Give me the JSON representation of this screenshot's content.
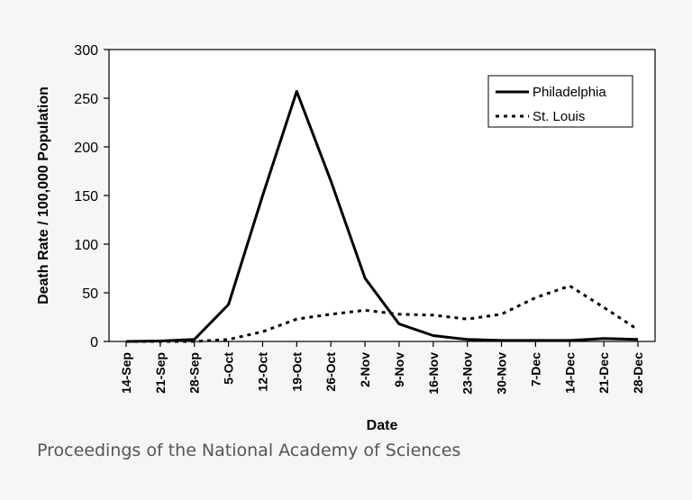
{
  "caption": "Proceedings of the National Academy of Sciences",
  "chart_data": {
    "type": "line",
    "title": "",
    "xlabel": "Date",
    "ylabel": "Death Rate / 100,000 Population",
    "ylim": [
      0,
      300
    ],
    "yticks": [
      0,
      50,
      100,
      150,
      200,
      250,
      300
    ],
    "grid": false,
    "legend_position": "top-right",
    "categories": [
      "14-Sep",
      "21-Sep",
      "28-Sep",
      "5-Oct",
      "12-Oct",
      "19-Oct",
      "26-Oct",
      "2-Nov",
      "9-Nov",
      "16-Nov",
      "23-Nov",
      "30-Nov",
      "7-Dec",
      "14-Dec",
      "21-Dec",
      "28-Dec"
    ],
    "series": [
      {
        "name": "Philadelphia",
        "style": "solid",
        "color": "#000000",
        "values": [
          0,
          0.5,
          2,
          38,
          150,
          257,
          165,
          65,
          18,
          6,
          2,
          1,
          1,
          1,
          3,
          2
        ]
      },
      {
        "name": "St. Louis",
        "style": "dotted",
        "color": "#000000",
        "values": [
          0,
          0,
          0,
          2,
          10,
          23,
          28,
          32,
          28,
          27,
          23,
          28,
          45,
          57,
          35,
          12
        ]
      }
    ]
  }
}
